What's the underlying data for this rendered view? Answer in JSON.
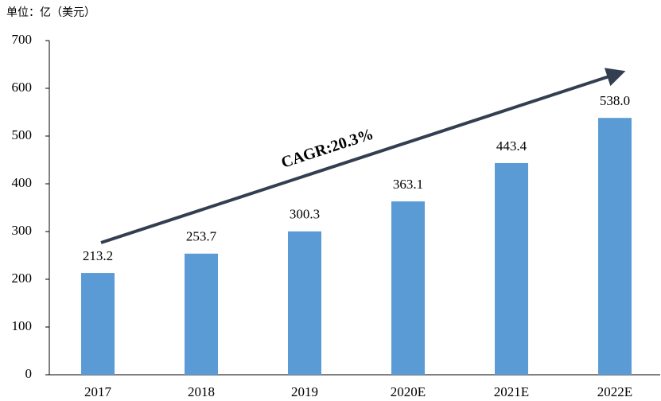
{
  "chart_data": {
    "type": "bar",
    "subtitle": "单位：亿（美元）",
    "annotation": "CAGR:20.3%",
    "categories": [
      "2017",
      "2018",
      "2019",
      "2020E",
      "2021E",
      "2022E"
    ],
    "values": [
      213.2,
      253.7,
      300.3,
      363.1,
      443.4,
      538.0
    ],
    "value_labels": [
      "213.2",
      "253.7",
      "300.3",
      "363.1",
      "443.4",
      "538.0"
    ],
    "color": "#5b9bd5",
    "ylim": [
      0,
      700
    ],
    "yticks": [
      0,
      100,
      200,
      300,
      400,
      500,
      600,
      700
    ],
    "grid": false
  }
}
